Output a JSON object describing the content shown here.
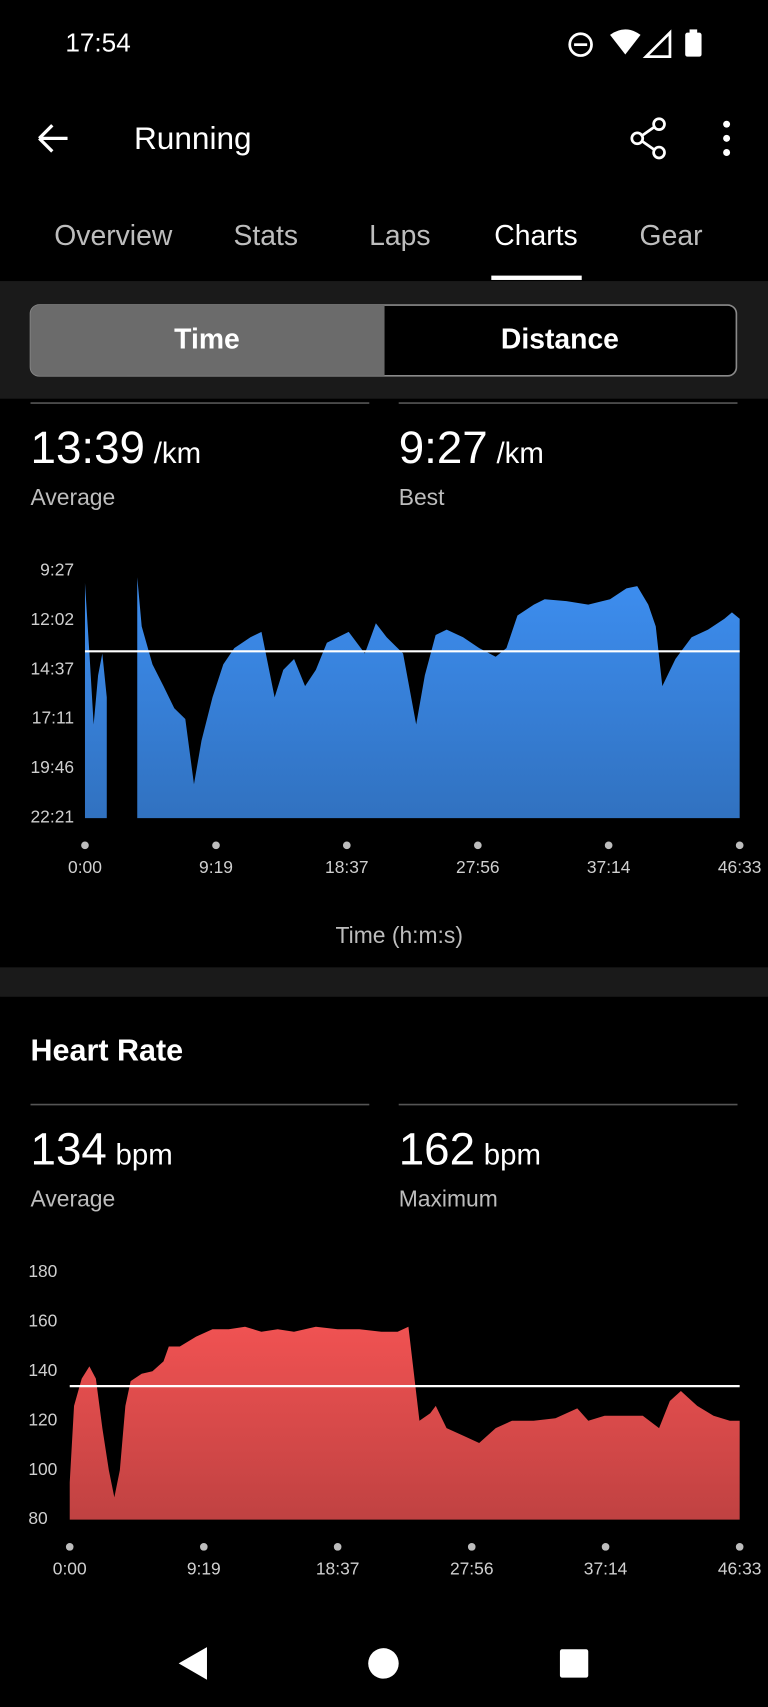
{
  "status_bar": {
    "time": "17:54"
  },
  "header": {
    "title": "Running"
  },
  "tabs": [
    "Overview",
    "Stats",
    "Laps",
    "Charts",
    "Gear"
  ],
  "toggle": [
    "Time",
    "Distance"
  ],
  "pace_stats": [
    {
      "value": "13:39",
      "unit": "/km",
      "label": "Average"
    },
    {
      "value": "9:27",
      "unit": "/km",
      "label": "Best"
    }
  ],
  "heart_rate_stats": [
    {
      "value": "134",
      "unit": "bpm",
      "label": "Average"
    },
    {
      "value": "162",
      "unit": "bpm",
      "label": "Maximum"
    }
  ],
  "chart_data": [
    {
      "type": "area",
      "xlabel": "Time (h:m:s)",
      "x": [
        0,
        19,
        37,
        56,
        74,
        93,
        112,
        223,
        242,
        288,
        335,
        381,
        428,
        465,
        497,
        544,
        590,
        637,
        706,
        753,
        809,
        846,
        892,
        939,
        985,
        1032,
        1125,
        1194,
        1241,
        1287,
        1357,
        1413,
        1450,
        1496,
        1543,
        1613,
        1682,
        1752,
        1798,
        1845,
        1915,
        1961,
        2054,
        2147,
        2240,
        2310,
        2356,
        2403,
        2435,
        2463,
        2519,
        2588,
        2658,
        2728,
        2760,
        2793
      ],
      "series": [
        {
          "color": "#3d8ef0",
          "values": [
            605,
            826,
            1048,
            894,
            826,
            963,
            null,
            587,
            741,
            860,
            928,
            997,
            1031,
            1235,
            1099,
            963,
            860,
            809,
            775,
            758,
            963,
            877,
            843,
            928,
            877,
            792,
            758,
            826,
            731,
            775,
            826,
            1048,
            894,
            768,
            751,
            775,
            809,
            836,
            809,
            707,
            673,
            656,
            662,
            673,
            656,
            622,
            615,
            673,
            741,
            928,
            843,
            775,
            751,
            717,
            697,
            717
          ]
        }
      ],
      "average_line": 819,
      "xlim": [
        0,
        2793
      ],
      "xticks": [
        {
          "value": 0,
          "label": "0:00"
        },
        {
          "value": 559,
          "label": "9:19"
        },
        {
          "value": 1117,
          "label": "18:37"
        },
        {
          "value": 1676,
          "label": "27:56"
        },
        {
          "value": 2234,
          "label": "37:14"
        },
        {
          "value": 2793,
          "label": "46:33"
        }
      ],
      "ylim": [
        1341,
        567
      ],
      "yticks": [
        {
          "value": 567,
          "label": "9:27"
        },
        {
          "value": 722,
          "label": "12:02"
        },
        {
          "value": 877,
          "label": "14:37"
        },
        {
          "value": 1031,
          "label": "17:11"
        },
        {
          "value": 1186,
          "label": "19:46"
        },
        {
          "value": 1341,
          "label": "22:21"
        }
      ]
    },
    {
      "type": "area",
      "title": "Heart Rate",
      "x": [
        0,
        18,
        50,
        82,
        109,
        136,
        163,
        186,
        209,
        232,
        254,
        300,
        345,
        391,
        413,
        459,
        527,
        595,
        663,
        731,
        799,
        867,
        935,
        1026,
        1117,
        1208,
        1299,
        1367,
        1412,
        1435,
        1458,
        1503,
        1526,
        1571,
        1639,
        1707,
        1776,
        1844,
        1934,
        2025,
        2116,
        2162,
        2230,
        2298,
        2389,
        2457,
        2502,
        2548,
        2616,
        2684,
        2752,
        2793
      ],
      "series": [
        {
          "color": "#f05252",
          "values": [
            95,
            126,
            137,
            142,
            137,
            117,
            100,
            89,
            100,
            126,
            136,
            139,
            140,
            144,
            150,
            150,
            154,
            157,
            157,
            158,
            156,
            157,
            156,
            158,
            157,
            157,
            156,
            156,
            158,
            139,
            120,
            123,
            126,
            117,
            114,
            111,
            117,
            120,
            120,
            121,
            125,
            120,
            122,
            122,
            122,
            117,
            128,
            132,
            126,
            122,
            120,
            120
          ]
        }
      ],
      "average_line": 134,
      "xlim": [
        0,
        2793
      ],
      "xticks": [
        {
          "value": 0,
          "label": "0:00"
        },
        {
          "value": 559,
          "label": "9:19"
        },
        {
          "value": 1117,
          "label": "18:37"
        },
        {
          "value": 1676,
          "label": "27:56"
        },
        {
          "value": 2234,
          "label": "37:14"
        },
        {
          "value": 2793,
          "label": "46:33"
        }
      ],
      "ylim": [
        80,
        180
      ],
      "yticks": [
        80,
        100,
        120,
        140,
        160,
        180
      ]
    }
  ]
}
